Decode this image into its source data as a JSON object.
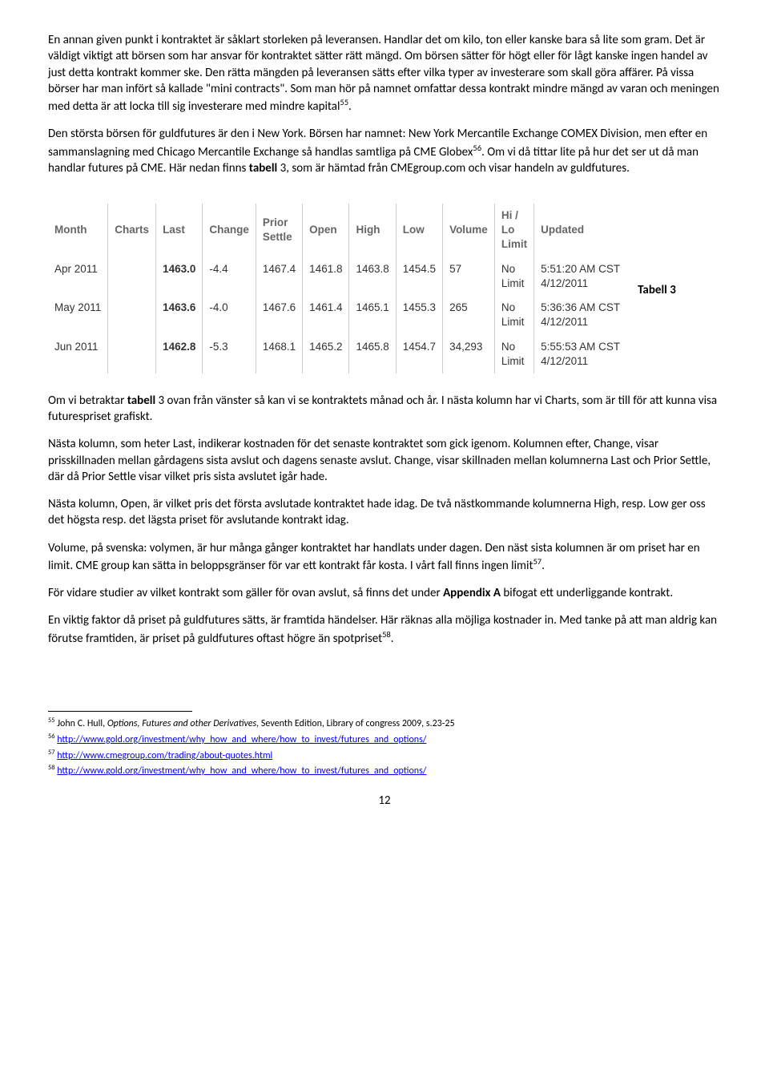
{
  "paragraphs": {
    "p1": "En annan given punkt i kontraktet är såklart storleken på leveransen. Handlar det om kilo, ton eller kanske bara så lite som gram. Det är väldigt viktigt att börsen som har ansvar för kontraktet sätter rätt mängd. Om börsen sätter för högt eller för lågt kanske ingen handel av just detta kontrakt kommer ske. Den rätta mängden på leveransen sätts efter vilka typer av investerare som skall göra affärer. På vissa börser har man infört så kallade \"mini contracts\". Som man hör på namnet omfattar dessa kontrakt mindre mängd av varan och meningen med detta är att locka till sig investerare med mindre kapital",
    "p1_sup": "55",
    "p1_tail": ".",
    "p2a": "Den största börsen för guldfutures är den i New York. Börsen har namnet: New York Mercantile Exchange COMEX Division, men efter en sammanslagning med Chicago Mercantile Exchange så handlas samtliga på CME Globex",
    "p2_sup": "56",
    "p2b": ". Om vi då tittar lite på hur det ser ut då man handlar futures på CME. Här nedan finns ",
    "p2_bold": "tabell ",
    "p2c": "3, som är hämtad från CMEgroup.com och visar handeln av guldfutures.",
    "p3a": "Om vi betraktar ",
    "p3_bold": "tabell ",
    "p3b": "3 ovan från vänster så kan vi se kontraktets månad och år. I nästa kolumn har vi Charts, som är till för att kunna visa futurespriset grafiskt.",
    "p4": "Nästa kolumn, som heter Last, indikerar kostnaden för det senaste kontraktet som gick igenom. Kolumnen efter, Change, visar prisskillnaden mellan gårdagens sista avslut och dagens senaste avslut. Change, visar skillnaden mellan kolumnerna Last och Prior Settle, där då Prior Settle visar vilket pris sista avslutet igår hade.",
    "p5": "Nästa kolumn, Open, är vilket pris det första avslutade kontraktet hade idag. De två nästkommande kolumnerna High, resp. Low ger oss det högsta resp. det lägsta priset för avslutande kontrakt idag.",
    "p6a": " Volume, på svenska: volymen, är hur många gånger kontraktet har handlats under dagen. Den näst sista kolumnen är om priset har en limit. CME group kan sätta in beloppsgränser för var ett kontrakt får kosta. I vårt fall finns ingen limit",
    "p6_sup": "57",
    "p6b": ".",
    "p7a": "För vidare studier av vilket kontrakt som gäller för ovan avslut, så finns det under ",
    "p7_bold": "Appendix A",
    "p7b": " bifogat ett underliggande kontrakt.",
    "p8a": "En viktig faktor då priset på guldfutures sätts, är framtida händelser. Här räknas alla möjliga kostnader in. Med tanke på att man aldrig kan förutse framtiden, är priset på guldfutures oftast högre än spotpriset",
    "p8_sup": "58",
    "p8b": "."
  },
  "table": {
    "headers": [
      "Month",
      "Charts",
      "Last",
      "Change",
      "Prior Settle",
      "Open",
      "High",
      "Low",
      "Volume",
      "Hi / Lo Limit",
      "Updated"
    ],
    "rows": [
      {
        "month": "Apr 2011",
        "charts": "",
        "last": "1463.0",
        "change": "-4.4",
        "prior": "1467.4",
        "open": "1461.8",
        "high": "1463.8",
        "low": "1454.5",
        "volume": "57",
        "limit": "No Limit",
        "updated": "5:51:20 AM CST 4/12/2011"
      },
      {
        "month": "May 2011",
        "charts": "",
        "last": "1463.6",
        "change": "-4.0",
        "prior": "1467.6",
        "open": "1461.4",
        "high": "1465.1",
        "low": "1455.3",
        "volume": "265",
        "limit": "No Limit",
        "updated": "5:36:36 AM CST 4/12/2011"
      },
      {
        "month": "Jun 2011",
        "charts": "",
        "last": "1462.8",
        "change": "-5.3",
        "prior": "1468.1",
        "open": "1465.2",
        "high": "1465.8",
        "low": "1454.7",
        "volume": "34,293",
        "limit": "No Limit",
        "updated": "5:55:53 AM CST 4/12/2011"
      }
    ],
    "caption": "Tabell 3"
  },
  "footnotes": {
    "f55_num": "55",
    "f55_a": " John C. Hull, ",
    "f55_i": "Options, Futures and other Derivatives,",
    "f55_b": " Seventh Edition, Library of congress 2009, s.23-25",
    "f56_num": "56",
    "f56_link": "http://www.gold.org/investment/why_how_and_where/how_to_invest/futures_and_options/",
    "f57_num": "57",
    "f57_link": "http://www.cmegroup.com/trading/about-quotes.html",
    "f58_num": "58",
    "f58_link": "http://www.gold.org/investment/why_how_and_where/how_to_invest/futures_and_options/"
  },
  "page_number": "12"
}
